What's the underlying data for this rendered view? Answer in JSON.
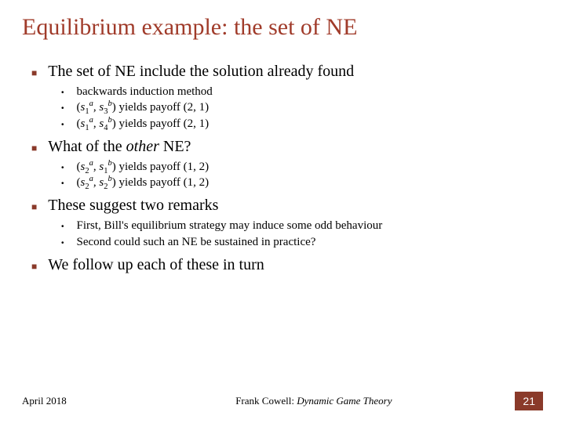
{
  "title": "Equilibrium example: the set of NE",
  "colors": {
    "title": "#a03b2a",
    "bullet_main": "#8a3a2a",
    "text": "#000000",
    "badge_bg": "#8a3a2a",
    "badge_fg": "#ffffff",
    "background": "#ffffff"
  },
  "bullets": {
    "b1": {
      "text": "The set of NE include the solution already found",
      "subs": {
        "s1": "backwards induction method",
        "s2_pre": "(",
        "s2_s1": "s",
        "s2_sub1": "1",
        "s2_sup1": "a",
        "s2_mid": ", ",
        "s2_s2": "s",
        "s2_sub2": "3",
        "s2_sup2": "b",
        "s2_post": ") yields payoff (2, 1)",
        "s3_pre": "(",
        "s3_s1": "s",
        "s3_sub1": "1",
        "s3_sup1": "a",
        "s3_mid": ", ",
        "s3_s2": "s",
        "s3_sub2": "4",
        "s3_sup2": "b",
        "s3_post": ") yields payoff (2, 1)"
      }
    },
    "b2": {
      "text_pre": "What of the ",
      "text_em": "other",
      "text_post": " NE?",
      "subs": {
        "s1_pre": "(",
        "s1_s1": "s",
        "s1_sub1": "2",
        "s1_sup1": "a",
        "s1_mid": ", ",
        "s1_s2": "s",
        "s1_sub2": "1",
        "s1_sup2": "b",
        "s1_post": ") yields payoff (1, 2)",
        "s2_pre": "(",
        "s2_s1": "s",
        "s2_sub1": "2",
        "s2_sup1": "a",
        "s2_mid": ", ",
        "s2_s2": "s",
        "s2_sub2": "2",
        "s2_sup2": "b",
        "s2_post": ") yields payoff (1, 2)"
      }
    },
    "b3": {
      "text": "These suggest two remarks",
      "subs": {
        "s1": "First, Bill's  equilibrium strategy may induce some odd behaviour",
        "s2": "Second could such an NE be sustained in practice?"
      }
    },
    "b4": {
      "text": "We follow up each of these in turn"
    }
  },
  "footer": {
    "date": "April 2018",
    "center_pre": "Frank Cowell: ",
    "center_em": "Dynamic Game Theory",
    "page": "21"
  }
}
